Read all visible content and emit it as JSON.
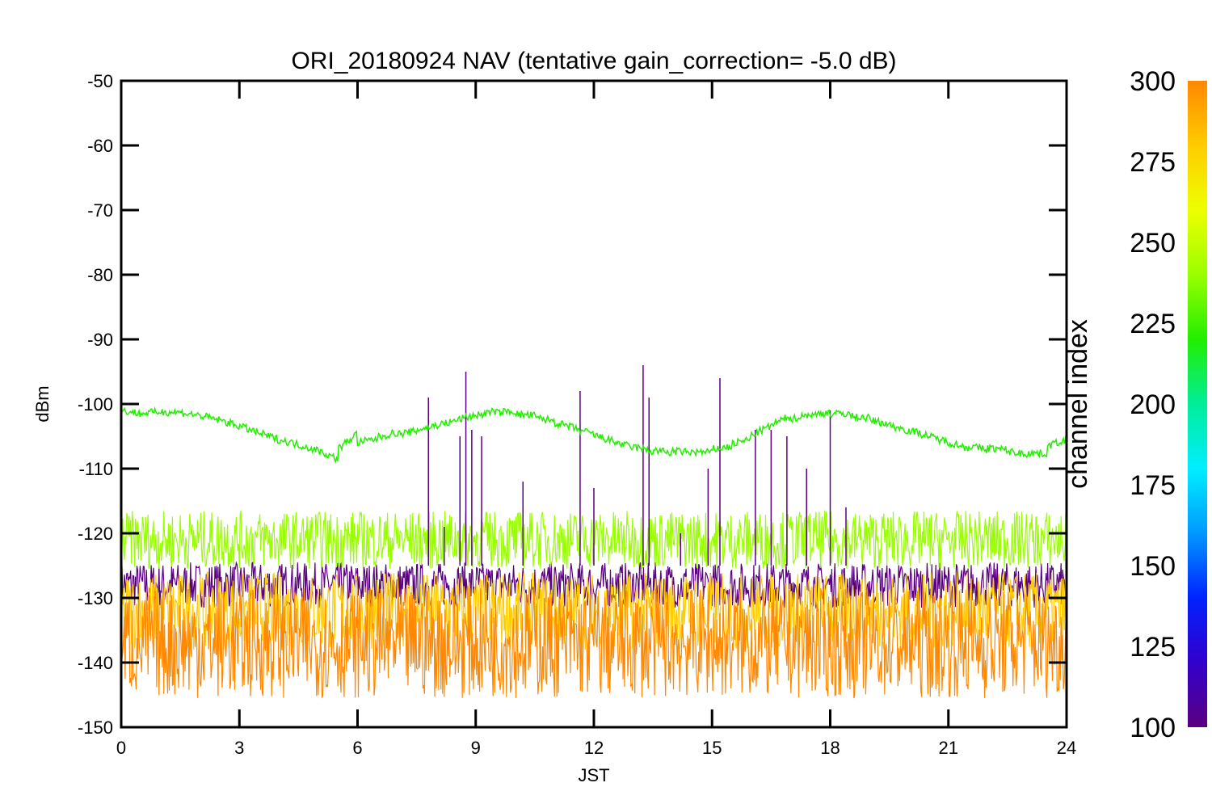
{
  "chart_data": {
    "type": "line",
    "title": "ORI_20180924 NAV (tentative gain_correction= -5.0 dB)",
    "xlabel": "JST",
    "ylabel": "dBm",
    "xlim": [
      0,
      24
    ],
    "ylim": [
      -150,
      -50
    ],
    "xticks": [
      "0",
      "3",
      "6",
      "9",
      "12",
      "15",
      "18",
      "21",
      "24"
    ],
    "yticks": [
      "-50",
      "-60",
      "-70",
      "-80",
      "-90",
      "-100",
      "-110",
      "-120",
      "-130",
      "-140",
      "-150"
    ],
    "grid": false,
    "colorbar": {
      "label": "channel index",
      "range": [
        100,
        300
      ],
      "ticks": [
        "300",
        "275",
        "250",
        "225",
        "200",
        "175",
        "150",
        "125",
        "100"
      ],
      "colormap": [
        "#5a0080",
        "#3300cc",
        "#0022ff",
        "#0099ff",
        "#00eeff",
        "#00ee99",
        "#22ee00",
        "#99ff00",
        "#eeff00",
        "#ffcc00",
        "#ff8800"
      ]
    },
    "series": [
      {
        "channel": 240,
        "color": "#22ee00",
        "x": [
          0,
          0.5,
          1,
          1.5,
          2,
          2.5,
          3,
          3.5,
          4,
          4.5,
          5,
          5.3,
          5.6,
          6,
          6.5,
          7,
          7.5,
          8,
          8.5,
          9,
          9.5,
          10,
          10.5,
          11,
          11.5,
          12,
          12.5,
          13,
          13.5,
          14,
          14.5,
          15,
          15.5,
          16,
          16.5,
          17,
          17.5,
          18,
          18.5,
          19,
          19.5,
          20,
          20.5,
          21,
          21.5,
          22,
          22.5,
          23,
          23.5,
          24
        ],
        "values": [
          -101,
          -101.5,
          -101.2,
          -101.3,
          -101.8,
          -102.5,
          -103.4,
          -104.5,
          -105.5,
          -106.3,
          -107.2,
          -108,
          -106.5,
          -106,
          -105.2,
          -104.7,
          -104,
          -103.3,
          -102.5,
          -101.8,
          -101.4,
          -101.6,
          -102.1,
          -102.9,
          -103.8,
          -104.8,
          -105.8,
          -106.6,
          -107.1,
          -107.3,
          -107.4,
          -107,
          -106.2,
          -104.8,
          -103.3,
          -102.4,
          -101.8,
          -101.6,
          -101.9,
          -102.5,
          -103.3,
          -104.1,
          -105,
          -105.9,
          -106.5,
          -106.8,
          -107.3,
          -107.5,
          -106.5,
          -104.5
        ]
      },
      {
        "channel": 255,
        "color": "#99ff00",
        "mean": -121,
        "spread": [
          -125,
          -116
        ]
      },
      {
        "channel": 105,
        "color": "#5a0080",
        "mean": -128,
        "spread": [
          -131,
          -124
        ]
      },
      {
        "channel": 280,
        "color": "#ffcc00",
        "mean": -132,
        "spread": [
          -138,
          -126
        ]
      },
      {
        "channel": 295,
        "color": "#ff8800",
        "mean": -137,
        "spread": [
          -145,
          -128
        ]
      }
    ],
    "spikes": [
      {
        "x": 7.8,
        "y": -99
      },
      {
        "x": 8.2,
        "y": -119
      },
      {
        "x": 8.6,
        "y": -105
      },
      {
        "x": 8.75,
        "y": -95
      },
      {
        "x": 8.9,
        "y": -104
      },
      {
        "x": 9.15,
        "y": -105
      },
      {
        "x": 10.2,
        "y": -112
      },
      {
        "x": 11.65,
        "y": -98
      },
      {
        "x": 12.0,
        "y": -113
      },
      {
        "x": 13.25,
        "y": -94
      },
      {
        "x": 13.4,
        "y": -99
      },
      {
        "x": 14.2,
        "y": -120
      },
      {
        "x": 14.9,
        "y": -110
      },
      {
        "x": 15.2,
        "y": -96
      },
      {
        "x": 16.1,
        "y": -104
      },
      {
        "x": 16.5,
        "y": -104
      },
      {
        "x": 16.9,
        "y": -105
      },
      {
        "x": 17.4,
        "y": -110
      },
      {
        "x": 18.0,
        "y": -101
      },
      {
        "x": 18.4,
        "y": -116
      }
    ]
  }
}
